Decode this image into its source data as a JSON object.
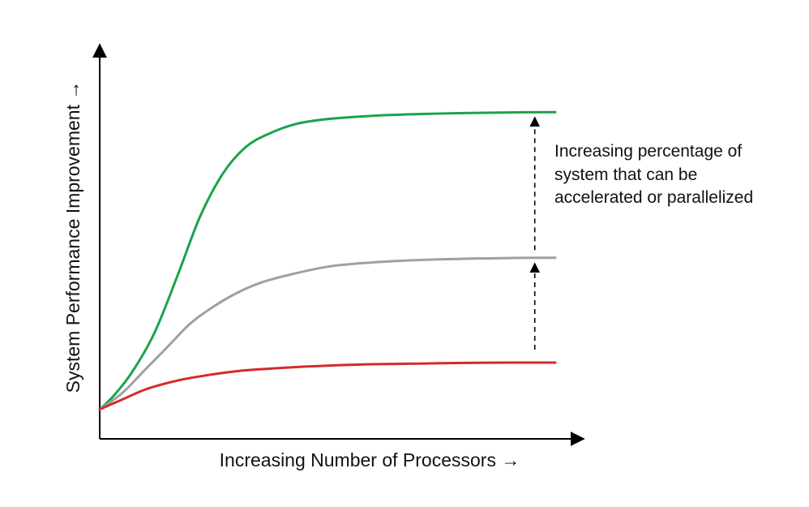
{
  "chart_data": {
    "type": "line",
    "title": "",
    "xlabel": "Increasing Number of Processors →",
    "ylabel": "System Performance Improvement →",
    "x_tick_labels": false,
    "y_tick_labels": false,
    "grid": false,
    "legend": "none",
    "xlim": [
      0,
      1
    ],
    "ylim": [
      0,
      1
    ],
    "series": [
      {
        "color": "#1aa34a",
        "x": [
          0,
          0.03,
          0.07,
          0.12,
          0.17,
          0.22,
          0.27,
          0.32,
          0.37,
          0.43,
          0.5,
          0.6,
          0.7,
          0.8,
          0.9,
          1.0
        ],
        "y": [
          0.04,
          0.08,
          0.15,
          0.27,
          0.44,
          0.62,
          0.75,
          0.83,
          0.87,
          0.9,
          0.915,
          0.925,
          0.93,
          0.933,
          0.935,
          0.936
        ]
      },
      {
        "color": "#a0a0a0",
        "x": [
          0,
          0.05,
          0.1,
          0.15,
          0.2,
          0.25,
          0.3,
          0.35,
          0.4,
          0.5,
          0.6,
          0.7,
          0.8,
          0.9,
          1.0
        ],
        "y": [
          0.04,
          0.09,
          0.16,
          0.23,
          0.3,
          0.35,
          0.39,
          0.42,
          0.44,
          0.47,
          0.483,
          0.49,
          0.494,
          0.496,
          0.497
        ]
      },
      {
        "color": "#d42a2a",
        "x": [
          0,
          0.05,
          0.1,
          0.15,
          0.2,
          0.3,
          0.4,
          0.5,
          0.6,
          0.7,
          0.8,
          0.9,
          1.0
        ],
        "y": [
          0.04,
          0.07,
          0.1,
          0.12,
          0.135,
          0.155,
          0.165,
          0.172,
          0.176,
          0.178,
          0.18,
          0.181,
          0.181
        ]
      }
    ],
    "arrows": [
      {
        "x": 0.955,
        "from_y": 0.22,
        "to_y": 0.48
      },
      {
        "x": 0.955,
        "from_y": 0.52,
        "to_y": 0.92
      }
    ],
    "annotation": {
      "lines": [
        "Increasing percentage of",
        "system that can be",
        "accelerated or parallelized"
      ]
    }
  }
}
